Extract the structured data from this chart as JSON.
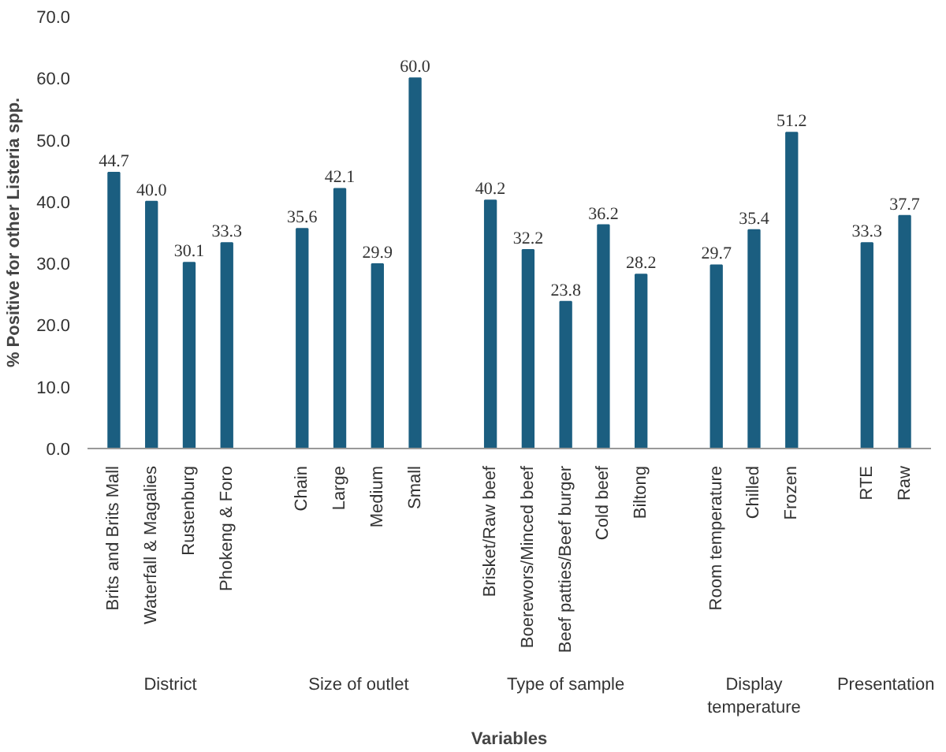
{
  "chart_data": {
    "type": "bar",
    "xlabel": "Variables",
    "ylabel": "% Positive for other Listeria spp.",
    "categories": [
      "Brits and Brits Mall",
      "Waterfall & Magalies",
      "Rustenburg",
      "Phokeng & Foro",
      null,
      "Chain",
      "Large",
      "Medium",
      "Small",
      null,
      "Brisket/Raw beef",
      "Boerewors/Minced beef",
      "Beef patties/Beef burger",
      "Cold beef",
      "Biltong",
      null,
      "Room temperature",
      "Chilled",
      "Frozen",
      null,
      "RTE",
      "Raw"
    ],
    "values": [
      44.7,
      40.0,
      30.1,
      33.3,
      null,
      35.6,
      42.1,
      29.9,
      60.0,
      null,
      40.2,
      32.2,
      23.8,
      36.2,
      28.2,
      null,
      29.7,
      35.4,
      51.2,
      null,
      33.3,
      37.7
    ],
    "value_labels": [
      "44.7",
      "40.0",
      "30.1",
      "33.3",
      null,
      "35.6",
      "42.1",
      "29.9",
      "60.0",
      null,
      "40.2",
      "32.2",
      "23.8",
      "36.2",
      "28.2",
      null,
      "29.7",
      "35.4",
      "51.2",
      null,
      "33.3",
      "37.7"
    ],
    "color": "#1b5e80",
    "annotations": [
      "District",
      "Size of outlet",
      "Type of sample",
      "Display temperature",
      "Presentation"
    ],
    "ylim": [
      0,
      70
    ],
    "yticks": [
      {
        "value": 0,
        "label": "0.0"
      },
      {
        "value": 10,
        "label": "10.0"
      },
      {
        "value": 20,
        "label": "20.0"
      },
      {
        "value": 30,
        "label": "30.0"
      },
      {
        "value": 40,
        "label": "40.0"
      },
      {
        "value": 50,
        "label": "50.0"
      },
      {
        "value": 60,
        "label": "60.0"
      },
      {
        "value": 70,
        "label": "70.0"
      }
    ],
    "grid": false
  }
}
